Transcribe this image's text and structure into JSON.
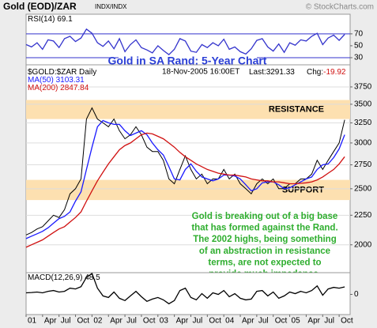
{
  "header": {
    "title": "Gold (EOD)/ZAR",
    "exchange": "INDX/INDX",
    "copyright": "© StockCharts.com"
  },
  "chart_data": [
    {
      "type": "line",
      "title": "Gold in SA Rand: 5-Year Chart",
      "title_color": "#2b3fd6",
      "x": [
        0,
        1,
        2,
        3,
        4,
        5,
        6,
        7,
        8,
        9,
        10,
        11,
        12,
        13,
        14,
        15,
        16,
        17,
        18,
        19,
        20,
        21,
        22,
        23,
        24,
        25,
        26,
        27,
        28,
        29,
        30,
        31,
        32,
        33,
        34,
        35,
        36,
        37,
        38,
        39,
        40,
        41,
        42,
        43,
        44,
        45,
        46,
        47,
        48,
        49,
        50,
        51,
        52,
        53,
        54,
        55,
        56,
        57,
        58
      ],
      "xlim": [
        0,
        59
      ],
      "series": [
        {
          "name": "RSI(14)",
          "last": 69.1,
          "color": "#3333cc",
          "values": [
            52,
            48,
            55,
            44,
            60,
            58,
            47,
            62,
            66,
            57,
            63,
            78,
            71,
            55,
            49,
            58,
            45,
            62,
            40,
            52,
            60,
            47,
            43,
            38,
            50,
            42,
            35,
            44,
            62,
            58,
            41,
            39,
            52,
            47,
            55,
            50,
            61,
            44,
            48,
            40,
            36,
            45,
            59,
            62,
            48,
            41,
            53,
            39,
            55,
            51,
            60,
            58,
            66,
            71,
            52,
            63,
            68,
            59,
            69.1
          ]
        }
      ],
      "ylim": [
        18,
        103
      ],
      "yticks": [
        30,
        50,
        70
      ],
      "reference_lines": [
        30,
        70
      ]
    },
    {
      "type": "line",
      "log": true,
      "date": "18-Nov-2005 16:00ET",
      "last": {
        "label": "Last:",
        "value": 3291.33
      },
      "change": {
        "label": "Chg:",
        "value": -19.92
      },
      "x": [
        0,
        1,
        2,
        3,
        4,
        5,
        6,
        7,
        8,
        9,
        10,
        11,
        12,
        13,
        14,
        15,
        16,
        17,
        18,
        19,
        20,
        21,
        22,
        23,
        24,
        25,
        26,
        27,
        28,
        29,
        30,
        31,
        32,
        33,
        34,
        35,
        36,
        37,
        38,
        39,
        40,
        41,
        42,
        43,
        44,
        45,
        46,
        47,
        48,
        49,
        50,
        51,
        52,
        53,
        54,
        55,
        56,
        57,
        58
      ],
      "xlim": [
        0,
        59
      ],
      "series": [
        {
          "name": "$GOLD:$ZAR Daily",
          "color": "#000000",
          "values": [
            2080,
            2100,
            2130,
            2150,
            2200,
            2250,
            2230,
            2300,
            2450,
            2500,
            2600,
            3300,
            3450,
            3300,
            3250,
            3200,
            3300,
            3150,
            3050,
            3100,
            3200,
            3100,
            2950,
            2900,
            2900,
            2800,
            2600,
            2550,
            2700,
            2850,
            2700,
            2600,
            2650,
            2550,
            2600,
            2600,
            2700,
            2600,
            2650,
            2550,
            2500,
            2450,
            2550,
            2600,
            2550,
            2600,
            2500,
            2500,
            2550,
            2550,
            2600,
            2600,
            2650,
            2800,
            2700,
            2800,
            2900,
            3000,
            3290
          ]
        },
        {
          "name": "MA(50)",
          "last": 3103.31,
          "color": "#1a1aff",
          "values": [
            2050,
            2070,
            2090,
            2110,
            2140,
            2180,
            2220,
            2240,
            2280,
            2380,
            2470,
            2700,
            2950,
            3200,
            3280,
            3250,
            3230,
            3230,
            3150,
            3090,
            3120,
            3150,
            3100,
            3000,
            2920,
            2860,
            2730,
            2600,
            2590,
            2700,
            2760,
            2680,
            2620,
            2600,
            2580,
            2600,
            2640,
            2640,
            2630,
            2600,
            2540,
            2480,
            2500,
            2560,
            2570,
            2570,
            2540,
            2500,
            2510,
            2540,
            2570,
            2600,
            2620,
            2700,
            2750,
            2760,
            2830,
            2930,
            3100
          ]
        },
        {
          "name": "MA(200)",
          "last": 2847.84,
          "color": "#d01010",
          "values": [
            1980,
            2000,
            2020,
            2040,
            2070,
            2100,
            2130,
            2150,
            2190,
            2230,
            2280,
            2380,
            2480,
            2580,
            2670,
            2760,
            2840,
            2920,
            2970,
            3000,
            3050,
            3100,
            3120,
            3110,
            3080,
            3050,
            3000,
            2950,
            2890,
            2840,
            2800,
            2760,
            2730,
            2700,
            2680,
            2660,
            2650,
            2640,
            2640,
            2630,
            2620,
            2600,
            2590,
            2580,
            2580,
            2570,
            2570,
            2560,
            2550,
            2550,
            2555,
            2560,
            2570,
            2590,
            2620,
            2660,
            2700,
            2760,
            2840
          ]
        }
      ],
      "ylim": [
        1790,
        4095
      ],
      "yticks": [
        2000,
        2250,
        2500,
        2750,
        3000,
        3250,
        3500,
        3750
      ],
      "grid": true,
      "bands": [
        {
          "label": "RESISTANCE",
          "range": [
            3300,
            3560
          ]
        },
        {
          "label": "SUPPORT",
          "range": [
            2390,
            2590
          ]
        }
      ],
      "band_color": "#fde0b0",
      "note": [
        "Gold is breaking out of a big base",
        "that has formed against the Rand.",
        "The 2002 highs, being something",
        "of an abstraction in resistance",
        "terms, are not expected to",
        "provide much impedance."
      ],
      "note_color": "#2fae2f"
    },
    {
      "type": "line",
      "x": [
        0,
        1,
        2,
        3,
        4,
        5,
        6,
        7,
        8,
        9,
        10,
        11,
        12,
        13,
        14,
        15,
        16,
        17,
        18,
        19,
        20,
        21,
        22,
        23,
        24,
        25,
        26,
        27,
        28,
        29,
        30,
        31,
        32,
        33,
        34,
        35,
        36,
        37,
        38,
        39,
        40,
        41,
        42,
        43,
        44,
        45,
        46,
        47,
        48,
        49,
        50,
        51,
        52,
        53,
        54,
        55,
        56,
        57,
        58
      ],
      "xlim": [
        0,
        59
      ],
      "series": [
        {
          "name": "MACD(12,26,9)",
          "last": 48.5,
          "color": "#000000",
          "values": [
            10,
            12,
            15,
            10,
            20,
            25,
            15,
            20,
            40,
            35,
            50,
            110,
            135,
            40,
            -10,
            -20,
            15,
            -25,
            -40,
            -10,
            20,
            -15,
            -45,
            -30,
            -20,
            -35,
            -60,
            -40,
            25,
            40,
            -20,
            -35,
            5,
            -25,
            10,
            0,
            25,
            -15,
            5,
            -25,
            -35,
            -30,
            20,
            25,
            -10,
            15,
            -25,
            -10,
            15,
            5,
            20,
            10,
            25,
            55,
            -5,
            35,
            45,
            40,
            48.5
          ]
        }
      ],
      "ylim": [
        -130,
        140
      ],
      "yticks": [
        0
      ],
      "xticks": [
        {
          "value": 0,
          "label": "01"
        },
        {
          "value": 3,
          "label": "Apr"
        },
        {
          "value": 6,
          "label": "Jul"
        },
        {
          "value": 9,
          "label": "Oct"
        },
        {
          "value": 12,
          "label": "02"
        },
        {
          "value": 15,
          "label": "Apr"
        },
        {
          "value": 18,
          "label": "Jul"
        },
        {
          "value": 21,
          "label": "Oct"
        },
        {
          "value": 24,
          "label": "03"
        },
        {
          "value": 27,
          "label": "Apr"
        },
        {
          "value": 30,
          "label": "Jul"
        },
        {
          "value": 33,
          "label": "Oct"
        },
        {
          "value": 36,
          "label": "04"
        },
        {
          "value": 39,
          "label": "Apr"
        },
        {
          "value": 42,
          "label": "Jul"
        },
        {
          "value": 45,
          "label": "Oct"
        },
        {
          "value": 48,
          "label": "05"
        },
        {
          "value": 51,
          "label": "Apr"
        },
        {
          "value": 54,
          "label": "Jul"
        },
        {
          "value": 57,
          "label": "Oct"
        }
      ]
    }
  ]
}
